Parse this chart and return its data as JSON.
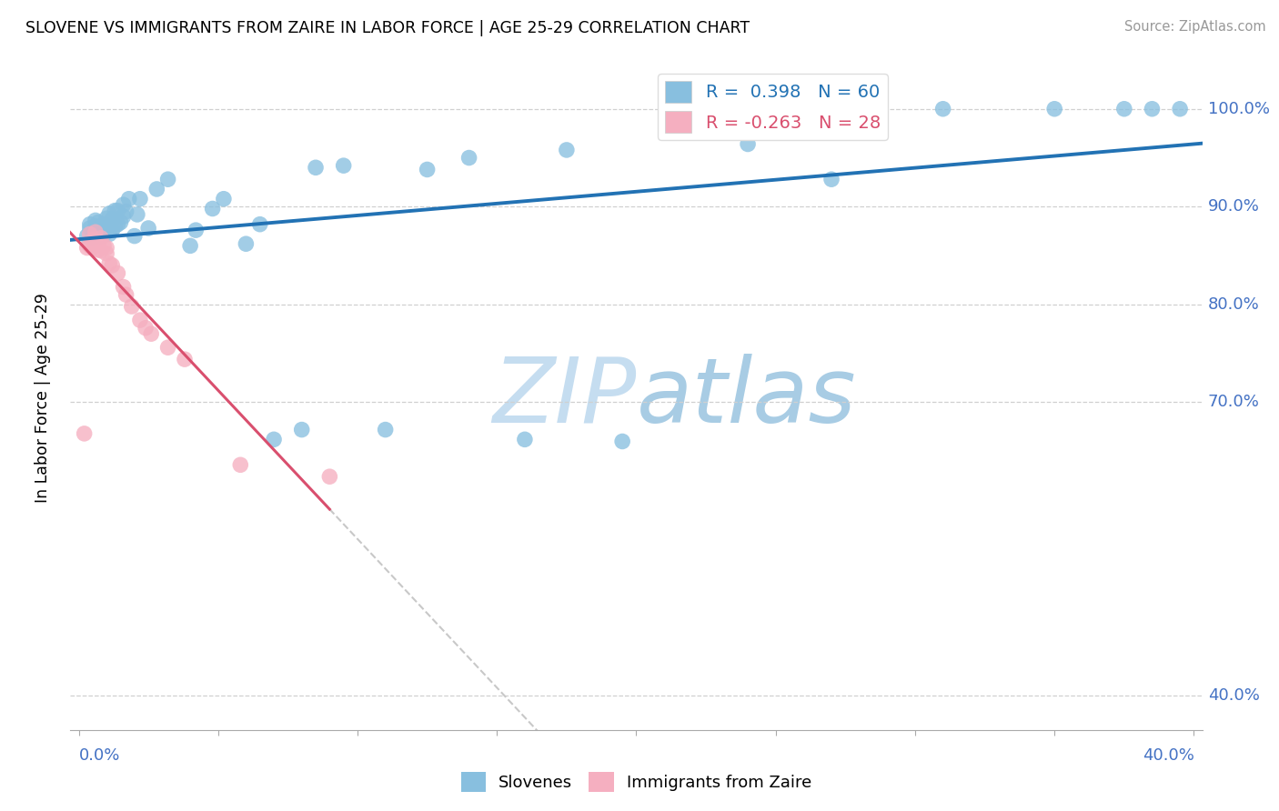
{
  "title": "SLOVENE VS IMMIGRANTS FROM ZAIRE IN LABOR FORCE | AGE 25-29 CORRELATION CHART",
  "source": "Source: ZipAtlas.com",
  "ylabel": "In Labor Force | Age 25-29",
  "yticks": [
    0.4,
    0.7,
    0.8,
    0.9,
    1.0
  ],
  "ytick_labels": [
    "40.0%",
    "70.0%",
    "80.0%",
    "90.0%",
    "100.0%"
  ],
  "xlim": [
    -0.003,
    0.403
  ],
  "ylim": [
    0.365,
    1.045
  ],
  "legend_blue_label": "R =  0.398   N = 60",
  "legend_pink_label": "R = -0.263   N = 28",
  "watermark_zip": "ZIP",
  "watermark_atlas": "atlas",
  "blue_color": "#88bfdf",
  "pink_color": "#f5afc0",
  "blue_line_color": "#2272b4",
  "pink_line_color": "#d94f6e",
  "slovene_x": [
    0.003,
    0.004,
    0.004,
    0.005,
    0.006,
    0.006,
    0.006,
    0.007,
    0.007,
    0.007,
    0.008,
    0.008,
    0.009,
    0.009,
    0.01,
    0.01,
    0.011,
    0.011,
    0.011,
    0.012,
    0.012,
    0.013,
    0.013,
    0.014,
    0.014,
    0.015,
    0.016,
    0.016,
    0.017,
    0.018,
    0.02,
    0.021,
    0.022,
    0.025,
    0.028,
    0.032,
    0.04,
    0.042,
    0.048,
    0.052,
    0.06,
    0.065,
    0.07,
    0.08,
    0.085,
    0.095,
    0.11,
    0.125,
    0.14,
    0.16,
    0.175,
    0.195,
    0.215,
    0.24,
    0.27,
    0.31,
    0.35,
    0.375,
    0.385,
    0.395
  ],
  "slovene_y": [
    0.87,
    0.878,
    0.882,
    0.868,
    0.875,
    0.88,
    0.886,
    0.872,
    0.876,
    0.884,
    0.87,
    0.878,
    0.875,
    0.882,
    0.874,
    0.888,
    0.872,
    0.88,
    0.893,
    0.876,
    0.887,
    0.88,
    0.896,
    0.882,
    0.896,
    0.884,
    0.89,
    0.902,
    0.895,
    0.908,
    0.87,
    0.892,
    0.908,
    0.878,
    0.918,
    0.928,
    0.86,
    0.876,
    0.898,
    0.908,
    0.862,
    0.882,
    0.662,
    0.672,
    0.94,
    0.942,
    0.672,
    0.938,
    0.95,
    0.662,
    0.958,
    0.66,
    1.0,
    0.964,
    0.928,
    1.0,
    1.0,
    1.0,
    1.0,
    1.0
  ],
  "zaire_x": [
    0.002,
    0.003,
    0.004,
    0.004,
    0.005,
    0.005,
    0.006,
    0.006,
    0.007,
    0.007,
    0.008,
    0.008,
    0.009,
    0.01,
    0.01,
    0.011,
    0.012,
    0.014,
    0.016,
    0.017,
    0.019,
    0.022,
    0.024,
    0.026,
    0.032,
    0.038,
    0.058,
    0.09
  ],
  "zaire_y": [
    0.668,
    0.858,
    0.86,
    0.872,
    0.858,
    0.866,
    0.862,
    0.874,
    0.856,
    0.864,
    0.855,
    0.868,
    0.86,
    0.852,
    0.858,
    0.842,
    0.84,
    0.832,
    0.818,
    0.81,
    0.798,
    0.784,
    0.776,
    0.77,
    0.756,
    0.744,
    0.636,
    0.624
  ]
}
